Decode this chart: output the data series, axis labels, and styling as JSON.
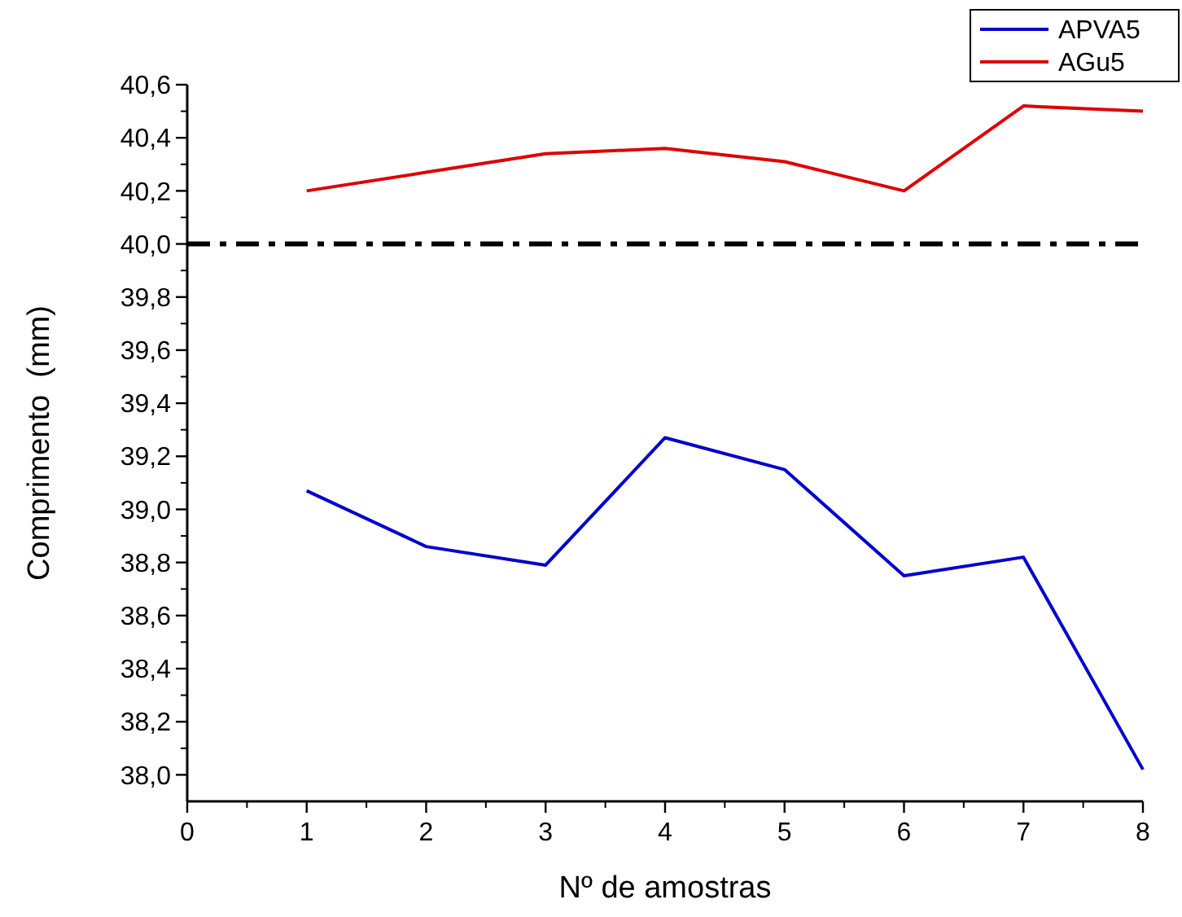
{
  "chart_data": {
    "type": "line",
    "xlabel": "Nº de amostras",
    "ylabel": "Comprimento  (mm)",
    "x": [
      1,
      2,
      3,
      4,
      5,
      6,
      7,
      8
    ],
    "series": [
      {
        "name": "APVA5",
        "color": "#0000cc",
        "values": [
          39.07,
          38.86,
          38.79,
          39.27,
          39.15,
          38.75,
          38.82,
          38.02
        ]
      },
      {
        "name": "AGu5",
        "color": "#dd0000",
        "values": [
          40.2,
          40.27,
          40.34,
          40.36,
          40.31,
          40.2,
          40.52,
          40.5
        ]
      }
    ],
    "xlim": [
      0,
      8
    ],
    "xticks": [
      0,
      1,
      2,
      3,
      4,
      5,
      6,
      7,
      8
    ],
    "ylim": [
      37.9,
      40.6
    ],
    "yticks": [
      {
        "value": 38,
        "label": "38,0"
      },
      {
        "value": 38.2,
        "label": "38,2"
      },
      {
        "value": 38.4,
        "label": "38,4"
      },
      {
        "value": 38.6,
        "label": "38,6"
      },
      {
        "value": 38.8,
        "label": "38,8"
      },
      {
        "value": 39,
        "label": "39,0"
      },
      {
        "value": 39.2,
        "label": "39,2"
      },
      {
        "value": 39.4,
        "label": "39,4"
      },
      {
        "value": 39.6,
        "label": "39,6"
      },
      {
        "value": 39.8,
        "label": "39,8"
      },
      {
        "value": 40,
        "label": "40,0"
      },
      {
        "value": 40.2,
        "label": "40,2"
      },
      {
        "value": 40.4,
        "label": "40,4"
      },
      {
        "value": 40.6,
        "label": "40,6"
      }
    ],
    "ref_lines": [
      {
        "axis": "y",
        "value": 40,
        "color": "#000000",
        "line_style": "dashed"
      }
    ],
    "grid": false,
    "legend": "top right",
    "marker": "none",
    "line_style": "solid"
  }
}
